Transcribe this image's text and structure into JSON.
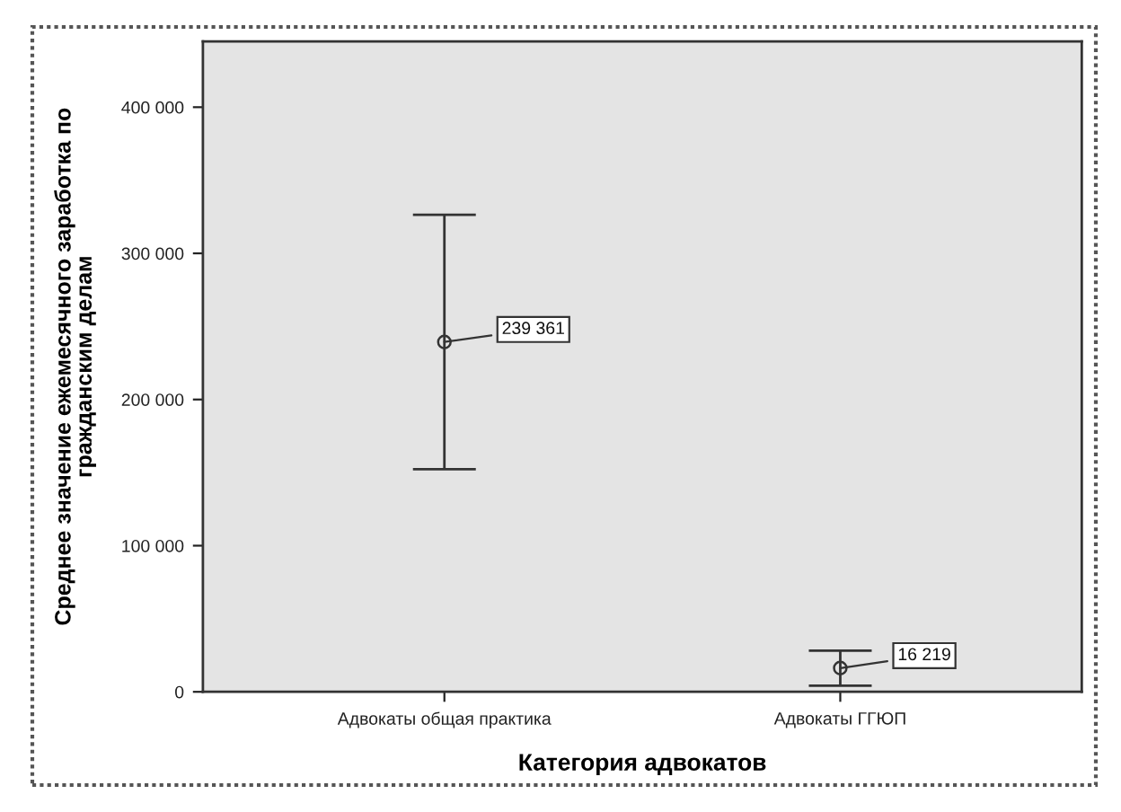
{
  "chart_data": {
    "type": "scatter",
    "xlabel": "Категория адвокатов",
    "ylabel": "Среднее значение ежемесячного заработка по\nгражданским делам",
    "categories": [
      "Адвокаты общая практика",
      "Адвокаты ГГЮП"
    ],
    "values": [
      239361,
      16219
    ],
    "errors": [
      87000,
      12000
    ],
    "value_labels": [
      "239 361",
      "16 219"
    ],
    "color": "#333333",
    "marker": "circle",
    "ylim": [
      0,
      445000
    ],
    "yticks": [
      0,
      {
        "value": 100000,
        "label": "100 000"
      },
      {
        "value": 200000,
        "label": "200 000"
      },
      {
        "value": 300000,
        "label": "300 000"
      },
      {
        "value": 400000,
        "label": "400 000"
      }
    ]
  }
}
